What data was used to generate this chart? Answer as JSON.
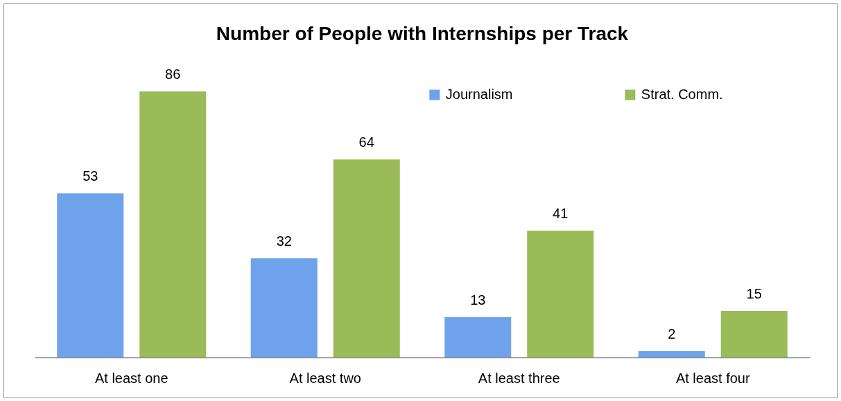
{
  "chart_data": {
    "type": "bar",
    "title": "Number of People with Internships per Track",
    "categories": [
      "At least one",
      "At least two",
      "At least three",
      "At least four"
    ],
    "series": [
      {
        "name": "Journalism",
        "color": "#6ea3ec",
        "values": [
          53,
          32,
          13,
          2
        ]
      },
      {
        "name": "Strat. Comm.",
        "color": "#9bbb59",
        "values": [
          86,
          64,
          41,
          15
        ]
      }
    ],
    "data_labels": true,
    "legend": "top right"
  }
}
